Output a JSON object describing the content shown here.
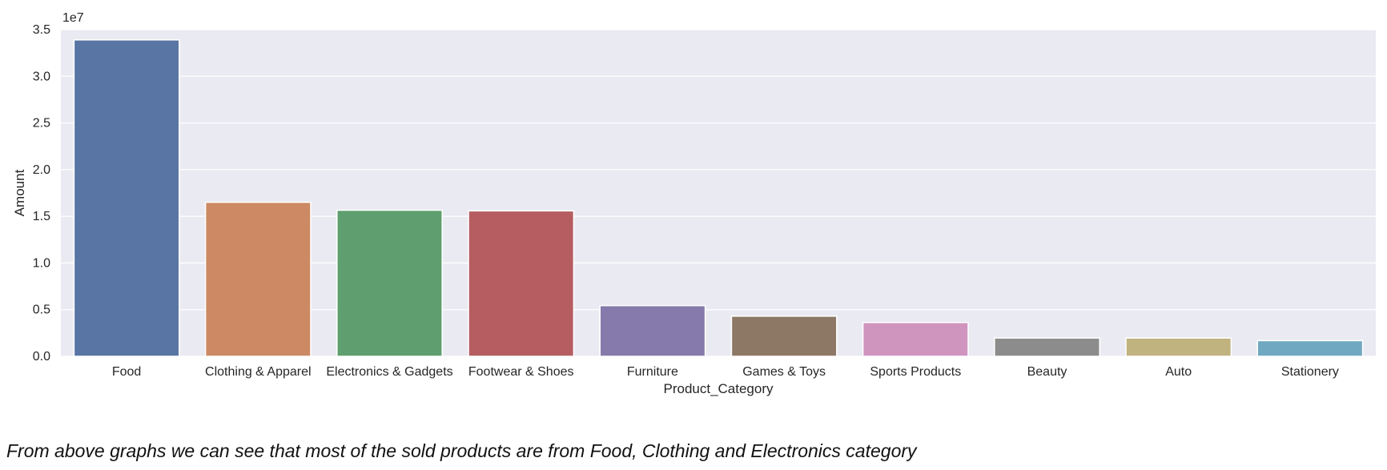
{
  "chart_data": {
    "type": "bar",
    "categories": [
      "Food",
      "Clothing & Apparel",
      "Electronics & Gadgets",
      "Footwear & Shoes",
      "Furniture",
      "Games & Toys",
      "Sports Products",
      "Beauty",
      "Auto",
      "Stationery"
    ],
    "values": [
      33900000,
      16500000,
      15650000,
      15580000,
      5430000,
      4300000,
      3620000,
      1960000,
      1960000,
      1680000
    ],
    "colors": [
      "#5975a4",
      "#cc8963",
      "#5f9e6e",
      "#b55d60",
      "#857aab",
      "#8d7866",
      "#d095bf",
      "#8c8c8c",
      "#c1b37f",
      "#6fa8c0"
    ],
    "xlabel": "Product_Category",
    "ylabel": "Amount",
    "ylim": [
      0,
      35000000
    ],
    "yticks": [
      0,
      5000000,
      10000000,
      15000000,
      20000000,
      25000000,
      30000000,
      35000000
    ],
    "ytick_labels": [
      "0.0",
      "0.5",
      "1.0",
      "1.5",
      "2.0",
      "2.5",
      "3.0",
      "3.5"
    ],
    "offset_label": "1e7",
    "grid": true,
    "background": "#eaeaf2"
  },
  "caption": "From above graphs we can see that most of the sold products are from Food, Clothing and Electronics category"
}
